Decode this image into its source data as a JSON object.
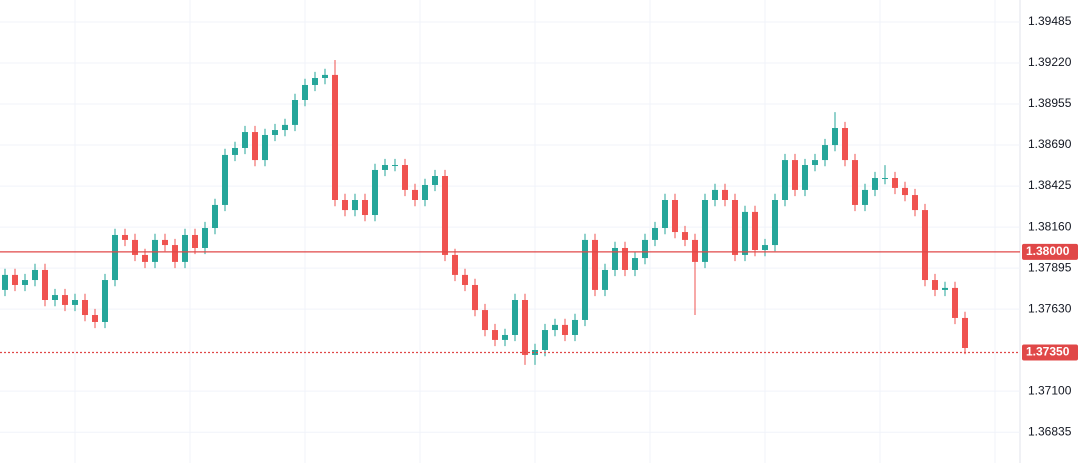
{
  "chart_data": {
    "type": "candlestick",
    "ylim": [
      1.36636,
      1.39627
    ],
    "yticks": [
      {
        "value": 1.39485,
        "label": "1.39485"
      },
      {
        "value": 1.3922,
        "label": "1.39220"
      },
      {
        "value": 1.38955,
        "label": "1.38955"
      },
      {
        "value": 1.3869,
        "label": "1.38690"
      },
      {
        "value": 1.38425,
        "label": "1.38425"
      },
      {
        "value": 1.3816,
        "label": "1.38160"
      },
      {
        "value": 1.37895,
        "label": "1.37895"
      },
      {
        "value": 1.3763,
        "label": "1.37630"
      },
      {
        "value": 1.371,
        "label": "1.37100"
      },
      {
        "value": 1.36835,
        "label": "1.36835"
      }
    ],
    "grid": true,
    "up_color": "#26a69a",
    "down_color": "#ef5350",
    "levels": [
      {
        "value": 1.38,
        "label": "1.38000",
        "style": "solid",
        "color": "#e04848"
      },
      {
        "value": 1.3735,
        "label": "1.37350",
        "style": "dotted",
        "color": "#e04848"
      }
    ],
    "open": [
      1.37754,
      1.37851,
      1.37786,
      1.37818,
      1.37883,
      1.37689,
      1.37721,
      1.37657,
      1.37689,
      1.37592,
      1.37547,
      1.37818,
      1.38109,
      1.38077,
      1.3798,
      1.37935,
      1.38077,
      1.38044,
      1.37935,
      1.38109,
      1.38025,
      1.38154,
      1.38303,
      1.38626,
      1.38671,
      1.38774,
      1.38593,
      1.38755,
      1.38787,
      1.3882,
      1.38981,
      1.39078,
      1.39123,
      1.39143,
      1.38335,
      1.3827,
      1.38335,
      1.38238,
      1.38529,
      1.38561,
      1.38561,
      1.384,
      1.38335,
      1.38432,
      1.3849,
      1.3798,
      1.37851,
      1.37786,
      1.37624,
      1.37495,
      1.37431,
      1.37463,
      1.37689,
      1.37334,
      1.37366,
      1.37495,
      1.37528,
      1.37463,
      1.3756,
      1.38077,
      1.37754,
      1.37883,
      1.38025,
      1.37883,
      1.3796,
      1.38077,
      1.38154,
      1.38335,
      1.38128,
      1.38077,
      1.37935,
      1.38335,
      1.384,
      1.38335,
      1.3798,
      1.38258,
      1.38012,
      1.38044,
      1.38335,
      1.38593,
      1.384,
      1.38561,
      1.38593,
      1.3869,
      1.388,
      1.38593,
      1.38303,
      1.384,
      1.38477,
      1.38477,
      1.38413,
      1.38367,
      1.3827,
      1.37818,
      1.37754,
      1.37767,
      1.37573
    ],
    "high": [
      1.37891,
      1.37891,
      1.37858,
      1.37923,
      1.37923,
      1.37761,
      1.37761,
      1.37729,
      1.37729,
      1.37632,
      1.37858,
      1.38149,
      1.38149,
      1.38117,
      1.3802,
      1.38117,
      1.38117,
      1.38084,
      1.38149,
      1.38149,
      1.38194,
      1.38343,
      1.38666,
      1.38711,
      1.38814,
      1.38814,
      1.38795,
      1.38827,
      1.3886,
      1.39021,
      1.39118,
      1.39163,
      1.39183,
      1.39239,
      1.38375,
      1.38375,
      1.38375,
      1.38569,
      1.38601,
      1.38601,
      1.38601,
      1.3844,
      1.38472,
      1.3853,
      1.3853,
      1.3802,
      1.37891,
      1.37826,
      1.37664,
      1.37535,
      1.37503,
      1.37729,
      1.37729,
      1.37406,
      1.37535,
      1.37568,
      1.37568,
      1.376,
      1.38117,
      1.38117,
      1.37923,
      1.38065,
      1.38065,
      1.38,
      1.38117,
      1.38194,
      1.38375,
      1.38375,
      1.38168,
      1.38117,
      1.38375,
      1.3844,
      1.3844,
      1.38375,
      1.38298,
      1.38298,
      1.38084,
      1.38375,
      1.38633,
      1.38633,
      1.38601,
      1.38633,
      1.3873,
      1.38903,
      1.3884,
      1.38633,
      1.3844,
      1.38517,
      1.3856,
      1.38517,
      1.38453,
      1.38407,
      1.3831,
      1.37858,
      1.37807,
      1.37807,
      1.37613
    ],
    "low": [
      1.37714,
      1.37746,
      1.37746,
      1.37778,
      1.37649,
      1.37649,
      1.37617,
      1.37617,
      1.37552,
      1.37507,
      1.37507,
      1.37778,
      1.38037,
      1.3794,
      1.37895,
      1.37895,
      1.38004,
      1.37895,
      1.37895,
      1.37985,
      1.37985,
      1.38114,
      1.38263,
      1.38586,
      1.38631,
      1.38553,
      1.38553,
      1.38715,
      1.38747,
      1.3878,
      1.38941,
      1.39038,
      1.39083,
      1.38295,
      1.3823,
      1.3823,
      1.38198,
      1.38198,
      1.38489,
      1.38521,
      1.3836,
      1.38295,
      1.38295,
      1.38392,
      1.3794,
      1.37811,
      1.37746,
      1.37584,
      1.37455,
      1.37391,
      1.37391,
      1.37423,
      1.3727,
      1.3727,
      1.37326,
      1.37455,
      1.37423,
      1.37423,
      1.3752,
      1.37714,
      1.37714,
      1.37843,
      1.37843,
      1.37843,
      1.3792,
      1.38037,
      1.38114,
      1.38088,
      1.38037,
      1.37592,
      1.37895,
      1.38295,
      1.38295,
      1.3794,
      1.3794,
      1.37972,
      1.37972,
      1.38004,
      1.38295,
      1.3836,
      1.3836,
      1.38521,
      1.38553,
      1.3865,
      1.38553,
      1.38263,
      1.38263,
      1.3836,
      1.38437,
      1.38373,
      1.38327,
      1.3823,
      1.37778,
      1.37714,
      1.37714,
      1.37533,
      1.37339
    ],
    "close": [
      1.37851,
      1.37786,
      1.37818,
      1.37883,
      1.37689,
      1.37721,
      1.37657,
      1.37689,
      1.37592,
      1.37547,
      1.37818,
      1.38109,
      1.38077,
      1.3798,
      1.37935,
      1.38077,
      1.38044,
      1.37935,
      1.38109,
      1.38025,
      1.38154,
      1.38303,
      1.38626,
      1.38671,
      1.38774,
      1.38593,
      1.38755,
      1.38787,
      1.3882,
      1.38981,
      1.39078,
      1.39123,
      1.39143,
      1.38335,
      1.3827,
      1.38335,
      1.38238,
      1.38529,
      1.38561,
      1.38561,
      1.384,
      1.38335,
      1.38432,
      1.3849,
      1.3798,
      1.37851,
      1.37786,
      1.37624,
      1.37495,
      1.37431,
      1.37463,
      1.37689,
      1.37334,
      1.37366,
      1.37495,
      1.37528,
      1.37463,
      1.3756,
      1.38077,
      1.37754,
      1.37883,
      1.38025,
      1.37883,
      1.3796,
      1.38077,
      1.38154,
      1.38335,
      1.38128,
      1.38077,
      1.37935,
      1.38335,
      1.384,
      1.38335,
      1.3798,
      1.38258,
      1.38012,
      1.38044,
      1.38335,
      1.38593,
      1.384,
      1.38561,
      1.38593,
      1.3869,
      1.388,
      1.38593,
      1.38303,
      1.384,
      1.38477,
      1.38477,
      1.38413,
      1.38367,
      1.3827,
      1.37818,
      1.37754,
      1.37767,
      1.37573,
      1.37379
    ]
  }
}
